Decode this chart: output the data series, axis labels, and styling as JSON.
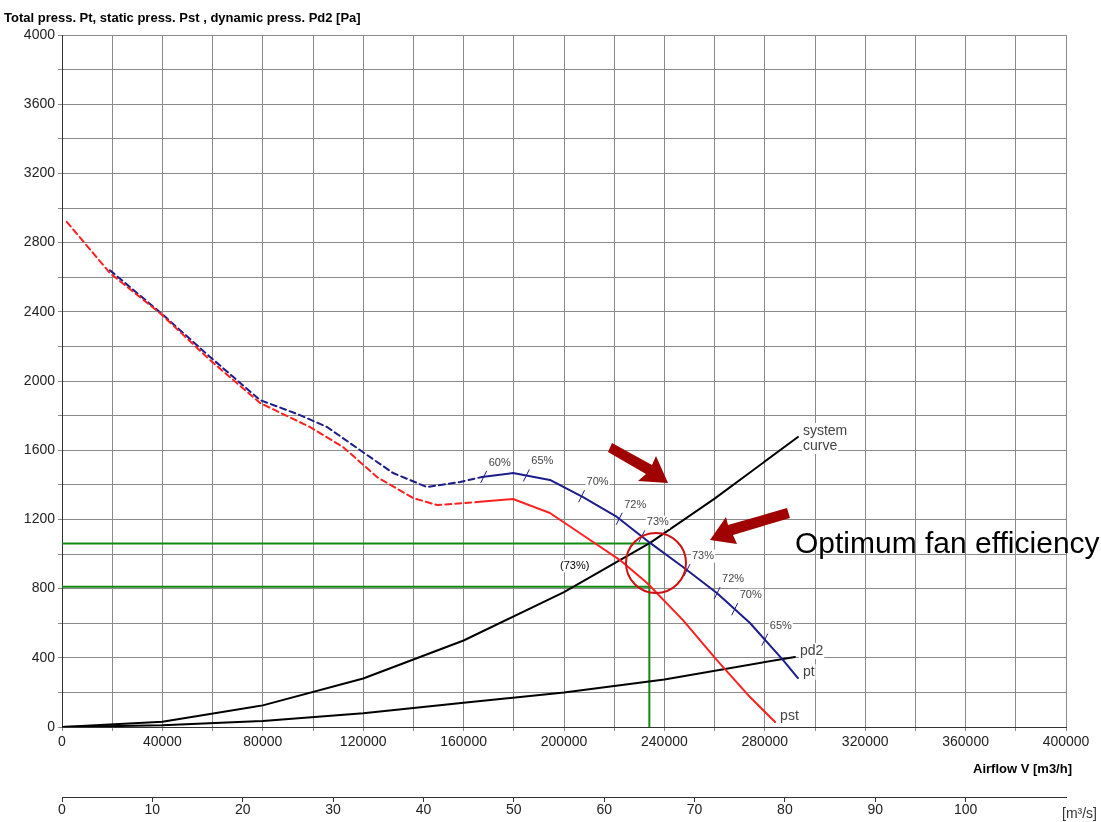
{
  "chart_data": {
    "type": "line",
    "ylabel": "Total press. Pt, static press. Pst , dynamic press. Pd2 [Pa]",
    "xlabel": "Airflow V [m3/h]",
    "x2label": "[m³/s]",
    "xlim": [
      0,
      400000
    ],
    "ylim": [
      0,
      4000
    ],
    "x2lim": [
      0,
      111.11
    ],
    "xticks": [
      0,
      {
        "value": 20000,
        "label": null
      },
      40000,
      {
        "value": 60000,
        "label": null
      },
      80000,
      {
        "value": 100000,
        "label": null
      },
      120000,
      {
        "value": 140000,
        "label": null
      },
      160000,
      {
        "value": 180000,
        "label": null
      },
      200000,
      {
        "value": 220000,
        "label": null
      },
      240000,
      {
        "value": 260000,
        "label": null
      },
      280000,
      {
        "value": 300000,
        "label": null
      },
      320000,
      {
        "value": 340000,
        "label": null
      },
      360000,
      {
        "value": 380000,
        "label": null
      },
      400000
    ],
    "yticks": [
      0,
      {
        "value": 200,
        "label": null
      },
      400,
      {
        "value": 600,
        "label": null
      },
      800,
      {
        "value": 1000,
        "label": null
      },
      1200,
      {
        "value": 1400,
        "label": null
      },
      1600,
      {
        "value": 1800,
        "label": null
      },
      2000,
      {
        "value": 2200,
        "label": null
      },
      2400,
      {
        "value": 2600,
        "label": null
      },
      2800,
      {
        "value": 3000,
        "label": null
      },
      3200,
      {
        "value": 3400,
        "label": null
      },
      3600,
      {
        "value": 3800,
        "label": null
      },
      4000
    ],
    "x2ticks": [
      0,
      10,
      20,
      30,
      40,
      50,
      60,
      70,
      80,
      90,
      100
    ],
    "grid": true,
    "legend": false,
    "marker": "none",
    "series": [
      {
        "color": "#ff2020",
        "line_style": "dashed",
        "x": [
          1900,
          19100,
          39000,
          59000,
          78900,
          98800,
          112000,
          125500,
          139800,
          149400,
          165300
        ],
        "values": [
          2920,
          2624,
          2393,
          2121,
          1873,
          1734,
          1618,
          1445,
          1324,
          1283,
          1300
        ]
      },
      {
        "name": "pst",
        "color": "#ff2020",
        "line_style": "solid",
        "x": [
          165300,
          179700,
          194400,
          210400,
          222300,
          233100,
          247400,
          260900,
          274100,
          284100
        ],
        "values": [
          1300,
          1318,
          1237,
          1081,
          965,
          832,
          618,
          387,
          173,
          29
        ]
      },
      {
        "color": "#1c1c8a",
        "line_style": "dashed",
        "x": [
          19100,
          39000,
          59000,
          78900,
          94800,
          105600,
          118700,
          131900,
          145400,
          158600,
          167300
        ],
        "values": [
          2640,
          2398,
          2139,
          1890,
          1803,
          1734,
          1601,
          1468,
          1387,
          1416,
          1445
        ]
      },
      {
        "name": "pt",
        "color": "#1c1c8a",
        "line_style": "solid",
        "x": [
          167300,
          179700,
          194400,
          207600,
          221100,
          234300,
          247400,
          260900,
          274100,
          287300,
          293200
        ],
        "values": [
          1445,
          1468,
          1428,
          1329,
          1214,
          1064,
          925,
          775,
          601,
          387,
          283
        ]
      },
      {
        "name": "system curve",
        "color": "#000000",
        "line_style": "solid",
        "x": [
          0,
          40000,
          80000,
          120000,
          160000,
          200000,
          234300,
          260000,
          293200
        ],
        "values": [
          0,
          30,
          125,
          280,
          500,
          780,
          1064,
          1320,
          1676
        ]
      },
      {
        "name": "pd2",
        "color": "#000000",
        "line_style": "solid",
        "x": [
          0,
          40000,
          80000,
          120000,
          160000,
          200000,
          240000,
          292000
        ],
        "values": [
          0,
          10,
          35,
          80,
          140,
          200,
          275,
          405
        ]
      },
      {
        "color": "#118a11",
        "line_style": "solid",
        "x": [
          0,
          234000,
          234000
        ],
        "values": [
          1060,
          1060,
          0
        ]
      },
      {
        "color": "#118a11",
        "line_style": "solid",
        "x": [
          0,
          234000
        ],
        "values": [
          810,
          810
        ]
      }
    ],
    "annotations": [
      "Optimum fan efficiency",
      "(73%)",
      {
        "text": "60%",
        "x": 168000,
        "y": 1446
      },
      {
        "text": "65%",
        "x": 185000,
        "y": 1454
      },
      {
        "text": "70%",
        "x": 207000,
        "y": 1334
      },
      {
        "text": "72%",
        "x": 222000,
        "y": 1204
      },
      {
        "text": "73%",
        "x": 231000,
        "y": 1102
      },
      {
        "text": "73%",
        "x": 249000,
        "y": 907
      },
      {
        "text": "72%",
        "x": 261000,
        "y": 774
      },
      {
        "text": "70%",
        "x": 268000,
        "y": 681
      },
      {
        "text": "65%",
        "x": 280000,
        "y": 505
      }
    ]
  }
}
